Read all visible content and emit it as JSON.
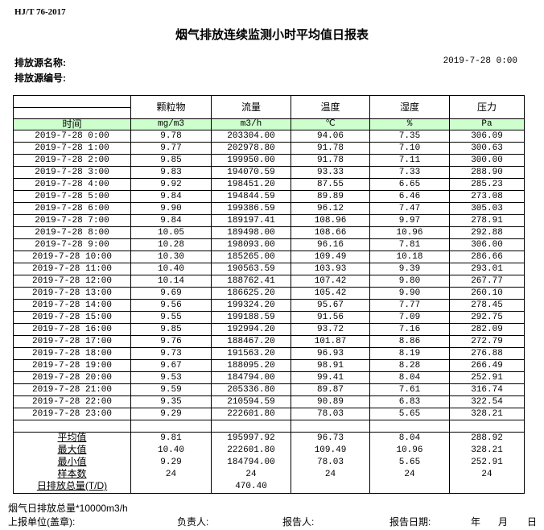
{
  "standard": "HJ/T  76-2017",
  "title": "烟气排放连续监测小时平均值日报表",
  "source_name_label": "排放源名称:",
  "source_id_label": "排放源编号:",
  "report_time": "2019-7-28 0:00",
  "table": {
    "columns": [
      "颗粒物",
      "流量",
      "温度",
      "湿度",
      "压力"
    ],
    "time_label": "时间",
    "units": [
      "mg/m3",
      "m3/h",
      "℃",
      "%",
      "Pa"
    ],
    "rows": [
      [
        "2019-7-28 0:00",
        "9.78",
        "203304.00",
        "94.06",
        "7.35",
        "306.09"
      ],
      [
        "2019-7-28 1:00",
        "9.77",
        "202978.80",
        "91.78",
        "7.10",
        "300.63"
      ],
      [
        "2019-7-28 2:00",
        "9.85",
        "199950.00",
        "91.78",
        "7.11",
        "300.00"
      ],
      [
        "2019-7-28 3:00",
        "9.83",
        "194070.59",
        "93.33",
        "7.33",
        "288.90"
      ],
      [
        "2019-7-28 4:00",
        "9.92",
        "198451.20",
        "87.55",
        "6.65",
        "285.23"
      ],
      [
        "2019-7-28 5:00",
        "9.84",
        "194844.59",
        "89.89",
        "6.46",
        "273.08"
      ],
      [
        "2019-7-28 6:00",
        "9.90",
        "199386.59",
        "96.12",
        "7.47",
        "305.03"
      ],
      [
        "2019-7-28 7:00",
        "9.84",
        "189197.41",
        "108.96",
        "9.97",
        "278.91"
      ],
      [
        "2019-7-28 8:00",
        "10.05",
        "189498.00",
        "108.66",
        "10.96",
        "292.88"
      ],
      [
        "2019-7-28 9:00",
        "10.28",
        "198093.00",
        "96.16",
        "7.81",
        "306.00"
      ],
      [
        "2019-7-28 10:00",
        "10.30",
        "185265.00",
        "109.49",
        "10.18",
        "286.66"
      ],
      [
        "2019-7-28 11:00",
        "10.40",
        "190563.59",
        "103.93",
        "9.39",
        "293.01"
      ],
      [
        "2019-7-28 12:00",
        "10.14",
        "188762.41",
        "107.42",
        "9.80",
        "267.77"
      ],
      [
        "2019-7-28 13:00",
        "9.69",
        "186625.20",
        "105.42",
        "9.90",
        "260.10"
      ],
      [
        "2019-7-28 14:00",
        "9.56",
        "199324.20",
        "95.67",
        "7.77",
        "278.45"
      ],
      [
        "2019-7-28 15:00",
        "9.55",
        "199188.59",
        "91.56",
        "7.09",
        "292.75"
      ],
      [
        "2019-7-28 16:00",
        "9.85",
        "192994.20",
        "93.72",
        "7.16",
        "282.09"
      ],
      [
        "2019-7-28 17:00",
        "9.76",
        "188467.20",
        "101.87",
        "8.86",
        "272.79"
      ],
      [
        "2019-7-28 18:00",
        "9.73",
        "191563.20",
        "96.93",
        "8.19",
        "276.88"
      ],
      [
        "2019-7-28 19:00",
        "9.67",
        "188095.20",
        "98.91",
        "8.28",
        "266.49"
      ],
      [
        "2019-7-28 20:00",
        "9.53",
        "184794.00",
        "99.41",
        "8.04",
        "252.91"
      ],
      [
        "2019-7-28 21:00",
        "9.59",
        "205336.80",
        "89.87",
        "7.61",
        "316.74"
      ],
      [
        "2019-7-28 22:00",
        "9.35",
        "210594.59",
        "90.89",
        "6.83",
        "322.54"
      ],
      [
        "2019-7-28 23:00",
        "9.29",
        "222601.80",
        "78.03",
        "5.65",
        "328.21"
      ]
    ],
    "summary": [
      [
        "平均值",
        "9.81",
        "195997.92",
        "96.73",
        "8.04",
        "288.92"
      ],
      [
        "最大值",
        "10.40",
        "222601.80",
        "109.49",
        "10.96",
        "328.21"
      ],
      [
        "最小值",
        "9.29",
        "184794.00",
        "78.03",
        "5.65",
        "252.91"
      ],
      [
        "样本数",
        "24",
        "24",
        "24",
        "24",
        "24"
      ],
      [
        "日排放总量(T/D)",
        "",
        "470.40",
        "",
        "",
        ""
      ]
    ]
  },
  "footer": {
    "note": "烟气日排放总量*10000m3/h",
    "unit_label": "上报单位(盖章):",
    "responsible_label": "负责人:",
    "reporter_label": "报告人:",
    "date_label": "报告日期:",
    "year": "年",
    "month": "月",
    "day": "日"
  }
}
